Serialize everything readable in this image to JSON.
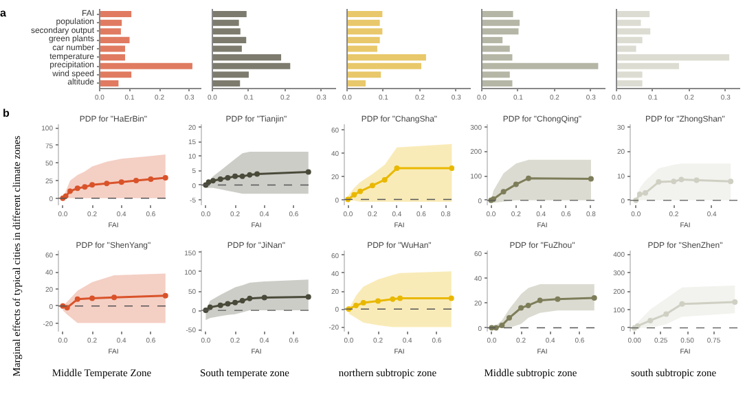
{
  "chart_data": [
    {
      "type": "bar",
      "orientation": "horizontal",
      "annotations": [
        "a"
      ],
      "categories": [
        "FAI",
        "population",
        "secondary output",
        "green plants",
        "car number",
        "temperature",
        "precipitation",
        "wind speed",
        "altitude"
      ],
      "values": [
        0.106,
        0.074,
        0.071,
        0.1,
        0.085,
        0.085,
        0.31,
        0.106,
        0.063
      ],
      "color": "#e07b61",
      "xlim": [
        0,
        0.34
      ],
      "xticks": [
        {
          "value": 0,
          "label": "0.0"
        },
        0.1,
        0.2,
        0.3
      ],
      "grid": false
    },
    {
      "type": "bar",
      "orientation": "horizontal",
      "categories": [
        null,
        null,
        null,
        null,
        null,
        null,
        null,
        null,
        null
      ],
      "values": [
        0.094,
        0.073,
        0.077,
        0.093,
        0.081,
        0.189,
        0.214,
        0.1,
        0.076
      ],
      "color": "#7d7b6e",
      "xlim": [
        0,
        0.34
      ],
      "xticks": [
        {
          "value": 0,
          "label": "0.0"
        },
        0.1,
        0.2,
        0.3
      ],
      "tick_labels": "x",
      "grid": false
    },
    {
      "type": "bar",
      "orientation": "horizontal",
      "categories": [
        null,
        null,
        null,
        null,
        null,
        null,
        null,
        null,
        null
      ],
      "values": [
        0.097,
        0.09,
        0.097,
        0.09,
        0.083,
        0.217,
        0.204,
        0.093,
        0.051
      ],
      "color": "#e8c86a",
      "xlim": [
        0,
        0.34
      ],
      "xticks": [
        {
          "value": 0,
          "label": "0.0"
        },
        0.1,
        0.2,
        0.3
      ],
      "tick_labels": "x",
      "grid": false
    },
    {
      "type": "bar",
      "orientation": "horizontal",
      "categories": [
        null,
        null,
        null,
        null,
        null,
        null,
        null,
        null,
        null
      ],
      "values": [
        0.086,
        0.104,
        0.101,
        0.057,
        0.077,
        0.084,
        0.32,
        0.077,
        0.084
      ],
      "color": "#b5b6a5",
      "xlim": [
        0,
        0.34
      ],
      "xticks": [
        {
          "value": 0,
          "label": "0.0"
        },
        0.1,
        0.2,
        0.3
      ],
      "tick_labels": "x",
      "grid": false
    },
    {
      "type": "bar",
      "orientation": "horizontal",
      "categories": [
        null,
        null,
        null,
        null,
        null,
        null,
        null,
        null,
        null
      ],
      "values": [
        0.091,
        0.067,
        0.093,
        0.071,
        0.054,
        0.31,
        0.172,
        0.071,
        0.071
      ],
      "color": "#dcdcd2",
      "xlim": [
        0,
        0.34
      ],
      "xticks": [
        {
          "value": 0,
          "label": "0.0"
        },
        0.1,
        0.2,
        0.3
      ],
      "tick_labels": "x",
      "grid": false
    },
    {
      "type": "line",
      "title": "PDP for \"HaErBin\"",
      "xlabel": "FAI",
      "annotations": [
        "b",
        "Marginal effects of typical cities in different climate zones"
      ],
      "marker": "circle",
      "grid": false,
      "xlim": [
        -0.03,
        0.72
      ],
      "xticks": [
        {
          "value": 0,
          "label": "0.0"
        },
        0.2,
        0.4,
        0.6
      ],
      "ylim": [
        -10,
        105
      ],
      "yticks": [
        0,
        25,
        50,
        75,
        100
      ],
      "ref_lines": [
        {
          "axis": "y",
          "value": 0,
          "color": "#555555",
          "line_style": "dashed"
        }
      ],
      "series": [
        {
          "color": "#d9532a",
          "x": [
            0,
            0.02,
            0.05,
            0.1,
            0.15,
            0.2,
            0.3,
            0.4,
            0.5,
            0.6,
            0.7
          ],
          "values": [
            0,
            3,
            10,
            14,
            16,
            19,
            21,
            23,
            25,
            27,
            29
          ],
          "lower": [
            0,
            0,
            0,
            0,
            0,
            0,
            0,
            0,
            0,
            0,
            0
          ],
          "upper": [
            0,
            10,
            25,
            33,
            38,
            45,
            52,
            56,
            58,
            60,
            62
          ]
        }
      ]
    },
    {
      "type": "line",
      "title": "PDP for \"Tianjin\"",
      "xlabel": "FAI",
      "marker": "circle",
      "grid": false,
      "xlim": [
        -0.03,
        0.72
      ],
      "xticks": [
        {
          "value": 0,
          "label": "0.0"
        },
        0.2,
        0.4,
        0.6
      ],
      "ylim": [
        -7,
        21
      ],
      "yticks": [
        -5,
        0,
        5,
        10,
        15,
        20
      ],
      "ref_lines": [
        {
          "axis": "y",
          "value": 0,
          "color": "#555555",
          "line_style": "dashed"
        }
      ],
      "series": [
        {
          "color": "#4a4a3a",
          "x": [
            0,
            0.02,
            0.05,
            0.1,
            0.15,
            0.2,
            0.25,
            0.3,
            0.35,
            0.7
          ],
          "values": [
            0,
            1,
            1.5,
            2,
            2.5,
            3,
            3,
            3.5,
            3.8,
            4.5
          ],
          "lower": [
            -1,
            -1,
            -1,
            -1.5,
            -2,
            -2.5,
            -3,
            -3,
            -3,
            -3
          ],
          "upper": [
            0,
            1,
            3,
            5,
            7,
            9,
            11,
            11.5,
            11.5,
            11.5
          ]
        }
      ]
    },
    {
      "type": "line",
      "title": "PDP for \"ChangSha\"",
      "xlabel": "FAI",
      "marker": "circle",
      "grid": false,
      "xlim": [
        -0.03,
        0.87
      ],
      "xticks": [
        {
          "value": 0,
          "label": "0.0"
        },
        0.2,
        0.4,
        0.6,
        0.8
      ],
      "ylim": [
        -5,
        65
      ],
      "yticks": [
        0,
        20,
        40,
        60
      ],
      "ref_lines": [
        {
          "axis": "y",
          "value": 0,
          "color": "#555555",
          "line_style": "dashed"
        }
      ],
      "series": [
        {
          "color": "#e9b800",
          "x": [
            0,
            0.05,
            0.1,
            0.2,
            0.3,
            0.4,
            0.85
          ],
          "values": [
            0,
            4,
            7,
            12,
            17,
            27,
            27
          ],
          "lower": [
            0,
            -1,
            -2,
            -2,
            -2,
            -2,
            -2
          ],
          "upper": [
            3,
            10,
            15,
            22,
            30,
            45,
            48
          ]
        }
      ]
    },
    {
      "type": "line",
      "title": "PDP for \"ChongQing\"",
      "xlabel": "FAI",
      "marker": "circle",
      "grid": false,
      "xlim": [
        -0.03,
        0.85
      ],
      "xticks": [
        {
          "value": 0,
          "label": "0.0"
        },
        0.2,
        0.4,
        0.6,
        0.8
      ],
      "ylim": [
        -20,
        310
      ],
      "yticks": [
        0,
        100,
        200,
        300
      ],
      "ref_lines": [
        {
          "axis": "y",
          "value": 0,
          "color": "#555555",
          "line_style": "dashed"
        }
      ],
      "series": [
        {
          "color": "#7d7d5a",
          "x": [
            0,
            0.02,
            0.1,
            0.2,
            0.3,
            0.8
          ],
          "values": [
            0,
            5,
            35,
            65,
            90,
            88
          ],
          "lower": [
            -10,
            -10,
            -5,
            0,
            0,
            0
          ],
          "upper": [
            0,
            40,
            110,
            150,
            165,
            165
          ]
        }
      ]
    },
    {
      "type": "line",
      "title": "PDP for \"ZhongShan\"",
      "xlabel": "FAI",
      "marker": "circle",
      "grid": false,
      "xlim": [
        -0.03,
        0.55
      ],
      "xticks": [
        {
          "value": 0,
          "label": "0.0"
        },
        0.2,
        0.4
      ],
      "ylim": [
        -2,
        31
      ],
      "yticks": [
        0,
        10,
        20,
        30
      ],
      "ref_lines": [
        {
          "axis": "y",
          "value": 0,
          "color": "#555555",
          "line_style": "dashed"
        }
      ],
      "series": [
        {
          "color": "#cfd0c3",
          "x": [
            0,
            0.02,
            0.05,
            0.12,
            0.2,
            0.24,
            0.32,
            0.5
          ],
          "values": [
            0,
            2.5,
            3,
            7.5,
            7.7,
            8.5,
            8.2,
            7.7
          ],
          "lower": [
            0,
            0,
            0,
            0,
            0,
            0,
            0,
            0
          ],
          "upper": [
            0,
            5,
            8,
            13,
            14.5,
            15,
            15,
            15
          ]
        }
      ]
    },
    {
      "type": "line",
      "title": "PDP for \"ShenYang\"",
      "xlabel": "FAI",
      "annotations": [
        "Middle Temperate Zone"
      ],
      "marker": "circle",
      "grid": false,
      "xlim": [
        -0.03,
        0.72
      ],
      "xticks": [
        {
          "value": 0,
          "label": "0.0"
        },
        0.2,
        0.4,
        0.6
      ],
      "ylim": [
        -30,
        65
      ],
      "yticks": [
        -20,
        0,
        20,
        40,
        60
      ],
      "ref_lines": [
        {
          "axis": "y",
          "value": 0,
          "color": "#555555",
          "line_style": "dashed"
        }
      ],
      "series": [
        {
          "color": "#d9532a",
          "x": [
            0,
            0.03,
            0.1,
            0.2,
            0.35,
            0.7
          ],
          "values": [
            0,
            -2,
            8,
            9,
            10,
            12
          ],
          "lower": [
            -5,
            -10,
            -20,
            -20,
            -20,
            -20
          ],
          "upper": [
            0,
            5,
            18,
            28,
            36,
            38
          ]
        }
      ]
    },
    {
      "type": "line",
      "title": "PDP for \"JiNan\"",
      "xlabel": "FAI",
      "annotations": [
        "South temperate zone"
      ],
      "marker": "circle",
      "grid": false,
      "xlim": [
        -0.03,
        0.72
      ],
      "xticks": [
        {
          "value": 0,
          "label": "0.0"
        },
        0.2,
        0.4,
        0.6
      ],
      "ylim": [
        -55,
        155
      ],
      "yticks": [
        -50,
        0,
        50,
        100,
        150
      ],
      "ref_lines": [
        {
          "axis": "y",
          "value": 0,
          "color": "#555555",
          "line_style": "dashed"
        }
      ],
      "series": [
        {
          "color": "#4a4a3a",
          "x": [
            0,
            0.03,
            0.1,
            0.15,
            0.2,
            0.25,
            0.3,
            0.4,
            0.7
          ],
          "values": [
            0,
            8,
            13,
            17,
            20,
            25,
            31,
            33,
            35
          ],
          "lower": [
            -25,
            -20,
            -15,
            -12,
            -10,
            -5,
            0,
            0,
            0
          ],
          "upper": [
            0,
            25,
            40,
            50,
            60,
            65,
            72,
            75,
            80
          ]
        }
      ]
    },
    {
      "type": "line",
      "title": "PDP for \"WuHan\"",
      "xlabel": "FAI",
      "annotations": [
        "northern subtropic zone"
      ],
      "marker": "circle",
      "grid": false,
      "xlim": [
        -0.03,
        0.72
      ],
      "xticks": [
        {
          "value": 0,
          "label": "0.0"
        },
        0.2,
        0.4,
        0.6
      ],
      "ylim": [
        -25,
        65
      ],
      "yticks": [
        -20,
        0,
        20,
        40,
        60
      ],
      "ref_lines": [
        {
          "axis": "y",
          "value": 0,
          "color": "#555555",
          "line_style": "dashed"
        }
      ],
      "series": [
        {
          "color": "#e9b800",
          "x": [
            0,
            0.05,
            0.1,
            0.2,
            0.3,
            0.35,
            0.7
          ],
          "values": [
            0,
            4,
            7,
            9,
            11,
            12,
            12
          ],
          "lower": [
            -5,
            -10,
            -15,
            -18,
            -20,
            -20,
            -20
          ],
          "upper": [
            0,
            15,
            25,
            33,
            38,
            40,
            42
          ]
        }
      ]
    },
    {
      "type": "line",
      "title": "PDP for \"FuZhou\"",
      "xlabel": "FAI",
      "annotations": [
        "Middle subtropic zone"
      ],
      "marker": "circle",
      "grid": false,
      "xlim": [
        -0.03,
        0.72
      ],
      "xticks": [
        {
          "value": 0,
          "label": "0.0"
        },
        0.2,
        0.4,
        0.6
      ],
      "ylim": [
        -3,
        62
      ],
      "yticks": [
        0,
        20,
        40,
        60
      ],
      "ref_lines": [
        {
          "axis": "y",
          "value": 0,
          "color": "#555555",
          "line_style": "dashed"
        }
      ],
      "series": [
        {
          "color": "#7d7d5a",
          "x": [
            0,
            0.03,
            0.07,
            0.12,
            0.2,
            0.25,
            0.33,
            0.45,
            0.7
          ],
          "values": [
            0,
            0,
            2,
            8,
            16,
            18,
            22,
            23,
            24
          ],
          "lower": [
            0,
            0,
            0,
            0,
            3,
            8,
            12,
            14,
            14
          ],
          "upper": [
            0,
            2,
            6,
            15,
            27,
            32,
            35,
            35,
            35
          ]
        }
      ]
    },
    {
      "type": "line",
      "title": "PDP for \"ShenZhen\"",
      "xlabel": "FAI",
      "annotations": [
        "south subtropic zone"
      ],
      "marker": "circle",
      "grid": false,
      "xlim": [
        -0.04,
        1.0
      ],
      "xticks": [
        {
          "value": 0,
          "label": "0.00"
        },
        {
          "value": 0.25,
          "label": "0.25"
        },
        {
          "value": 0.5,
          "label": "0.50"
        },
        {
          "value": 0.75,
          "label": "0.75"
        }
      ],
      "ylim": [
        -20,
        420
      ],
      "yticks": [
        0,
        100,
        200,
        300,
        400
      ],
      "ref_lines": [
        {
          "axis": "y",
          "value": 0,
          "color": "#555555",
          "line_style": "dashed"
        }
      ],
      "series": [
        {
          "color": "#cfd0c3",
          "x": [
            0,
            0.03,
            0.15,
            0.3,
            0.45,
            0.95
          ],
          "values": [
            0,
            10,
            40,
            75,
            130,
            140
          ],
          "lower": [
            0,
            0,
            0,
            20,
            60,
            80
          ],
          "upper": [
            0,
            30,
            100,
            160,
            220,
            230
          ]
        }
      ]
    }
  ]
}
